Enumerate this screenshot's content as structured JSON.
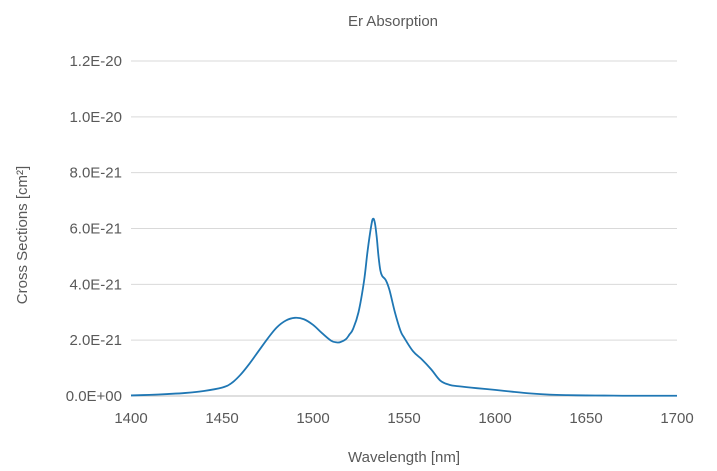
{
  "chart_data": {
    "type": "line",
    "title": "Er Absorption",
    "xlabel": "Wavelength [nm]",
    "ylabel": "Cross Sections [cm²]",
    "xlim": [
      1400,
      1700
    ],
    "ylim": [
      0,
      1.2e-20
    ],
    "x_ticks": [
      1400,
      1450,
      1500,
      1550,
      1600,
      1650,
      1700
    ],
    "x_tick_labels": [
      "1400",
      "1450",
      "1500",
      "1550",
      "1600",
      "1650",
      "1700"
    ],
    "y_ticks": [
      0,
      2e-21,
      4e-21,
      6e-21,
      8e-21,
      1e-20,
      1.2e-20
    ],
    "y_tick_labels": [
      "0.0E+00",
      "2.0E-21",
      "4.0E-21",
      "6.0E-21",
      "8.0E-21",
      "1.0E-20",
      "1.2E-20"
    ],
    "grid": "horizontal",
    "legend": "none",
    "series": [
      {
        "color": "#1f77b4",
        "x": [
          1400,
          1410,
          1420,
          1430,
          1440,
          1450,
          1455,
          1460,
          1465,
          1470,
          1475,
          1480,
          1485,
          1490,
          1495,
          1500,
          1505,
          1510,
          1513,
          1515,
          1518,
          1520,
          1522,
          1525,
          1528,
          1530,
          1532,
          1533,
          1534,
          1535,
          1536,
          1537,
          1538,
          1540,
          1542,
          1545,
          1548,
          1550,
          1555,
          1560,
          1565,
          1570,
          1575,
          1580,
          1590,
          1600,
          1610,
          1620,
          1630,
          1640,
          1650,
          1660,
          1670,
          1680,
          1690,
          1700
        ],
        "y": [
          2e-23,
          4e-23,
          7e-23,
          1.1e-22,
          1.8e-22,
          3e-22,
          4.5e-22,
          7.5e-22,
          1.15e-21,
          1.6e-21,
          2.05e-21,
          2.45e-21,
          2.7e-21,
          2.8e-21,
          2.75e-21,
          2.55e-21,
          2.25e-21,
          1.98e-21,
          1.92e-21,
          1.93e-21,
          2.03e-21,
          2.2e-21,
          2.4e-21,
          3e-21,
          4.1e-21,
          5.2e-21,
          6.1e-21,
          6.35e-21,
          6.2e-21,
          5.7e-21,
          5e-21,
          4.5e-21,
          4.3e-21,
          4.15e-21,
          3.8e-21,
          3e-21,
          2.35e-21,
          2.1e-21,
          1.6e-21,
          1.3e-21,
          9.5e-22,
          5.5e-22,
          4e-22,
          3.5e-22,
          2.8e-22,
          2.2e-22,
          1.5e-22,
          9e-23,
          5e-23,
          3e-23,
          2e-23,
          1.5e-23,
          1e-23,
          1e-23,
          1e-23,
          1e-23
        ]
      }
    ]
  }
}
